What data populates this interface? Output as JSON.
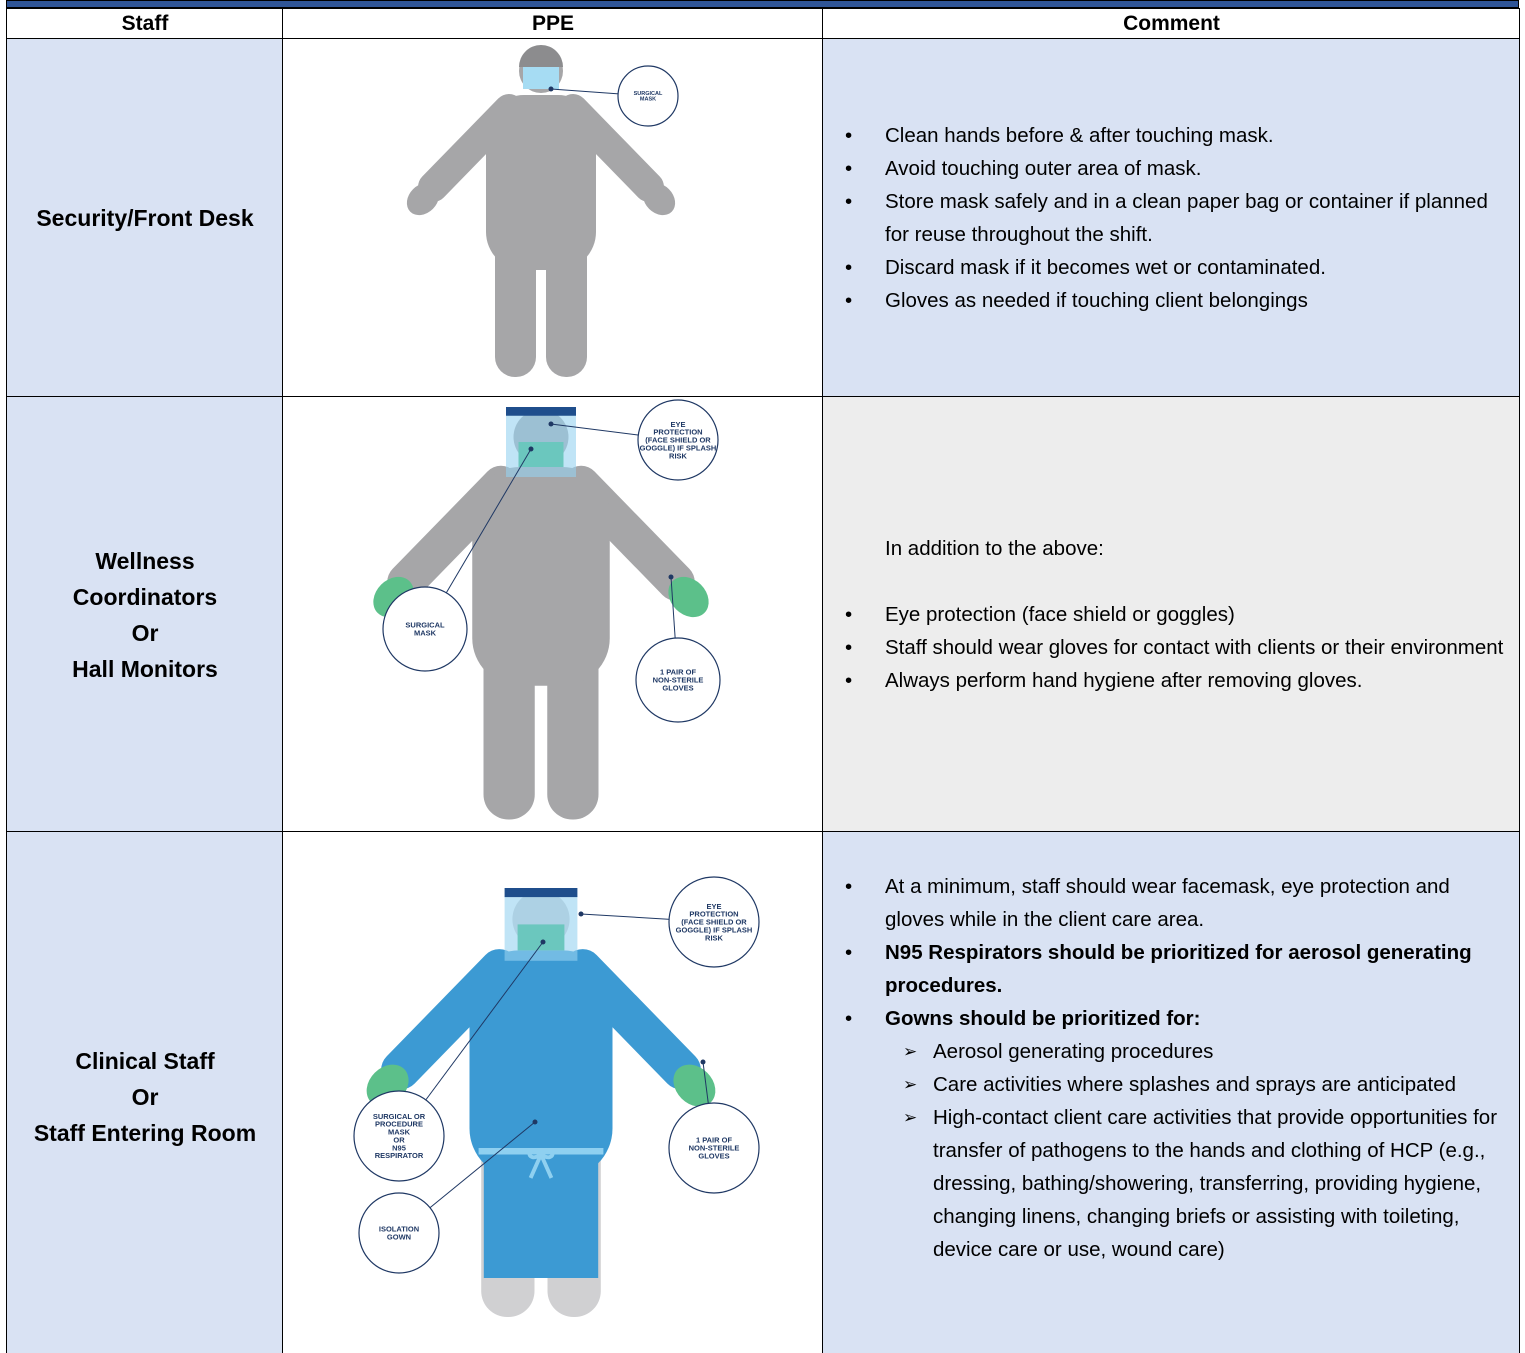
{
  "table": {
    "headers": [
      "Staff",
      "PPE",
      "Comment"
    ],
    "rows": [
      {
        "staff": [
          "Security/Front Desk"
        ],
        "callouts": [
          [
            "SURGICAL",
            "MASK"
          ]
        ],
        "comment": {
          "items": [
            {
              "text": "Clean hands before & after touching mask."
            },
            {
              "text": "Avoid touching outer area of mask."
            },
            {
              "text": "Store mask safely and in a clean paper bag or container if planned for reuse throughout the shift."
            },
            {
              "text": "Discard mask if it becomes wet or contaminated."
            },
            {
              "text": "Gloves as needed if touching client belongings"
            }
          ]
        }
      },
      {
        "staff": [
          "Wellness",
          "Coordinators",
          "Or",
          "Hall Monitors"
        ],
        "callouts": [
          [
            "EYE",
            "PROTECTION",
            "(FACE SHIELD OR",
            "GOGGLE) IF SPLASH",
            "RISK"
          ],
          [
            "SURGICAL",
            "MASK"
          ],
          [
            "1 PAIR OF",
            "NON-STERILE",
            "GLOVES"
          ]
        ],
        "comment": {
          "intro": "In addition to the above:",
          "items": [
            {
              "text": "Eye protection (face shield or goggles)"
            },
            {
              "text": "Staff should wear gloves for contact with clients or their environment"
            },
            {
              "text": "Always perform hand hygiene after removing gloves."
            }
          ]
        }
      },
      {
        "staff": [
          "Clinical Staff",
          "Or",
          "Staff Entering Room"
        ],
        "callouts": [
          [
            "EYE",
            "PROTECTION",
            "(FACE SHIELD OR",
            "GOGGLE) IF SPLASH",
            "RISK"
          ],
          [
            "SURGICAL OR",
            "PROCEDURE",
            "MASK",
            "OR",
            "N95",
            "RESPIRATOR"
          ],
          [
            "1 PAIR OF",
            "NON-STERILE",
            "GLOVES"
          ],
          [
            "ISOLATION",
            "GOWN"
          ]
        ],
        "comment": {
          "items": [
            {
              "text": "At a minimum, staff should wear facemask, eye protection and gloves while in the client care area."
            },
            {
              "text": "N95 Respirators should be prioritized for aerosol generating procedures.",
              "bold": true
            },
            {
              "text": "Gowns should be prioritized for:",
              "bold": true,
              "sub": [
                "Aerosol generating procedures",
                "Care activities where splashes and sprays are anticipated",
                "High-contact client care activities that provide opportunities for transfer of pathogens to the hands and clothing of HCP (e.g., dressing, bathing/showering, transferring, providing hygiene, changing linens, changing briefs or assisting with toileting, device care or use, wound care)"
              ]
            }
          ]
        }
      }
    ]
  }
}
